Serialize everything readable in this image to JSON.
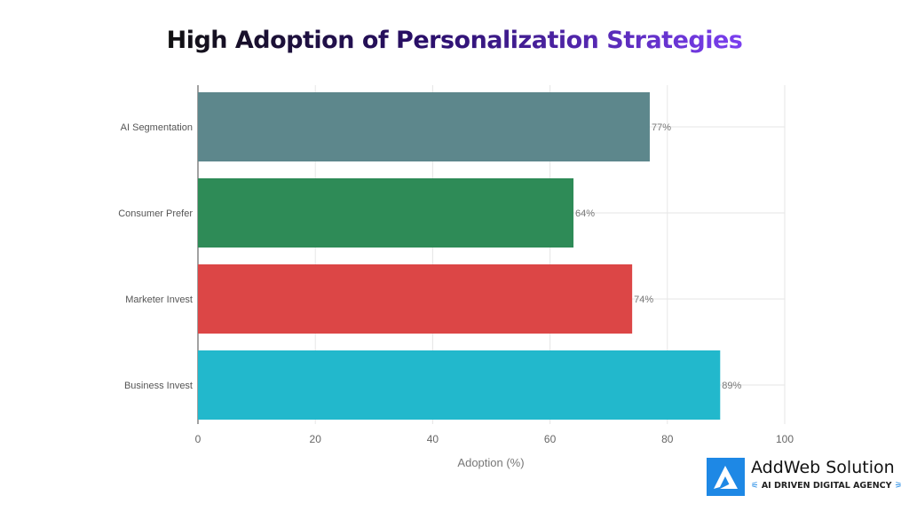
{
  "chart_data": {
    "type": "bar",
    "orientation": "horizontal",
    "title": "High Adoption of Personalization Strategies",
    "categories": [
      "AI Segmentation",
      "Consumer Prefer",
      "Marketer Invest",
      "Business Invest"
    ],
    "values": [
      77,
      64,
      74,
      89
    ],
    "data_labels": [
      "77%",
      "64%",
      "74%",
      "89%"
    ],
    "colors": [
      "#5d878c",
      "#2e8b57",
      "#dc4646",
      "#22b8cc"
    ],
    "xlabel": "Adoption (%)",
    "ylabel": "",
    "xlim": [
      0,
      100
    ],
    "xticks": [
      0,
      20,
      40,
      60,
      80,
      100
    ],
    "grid": true
  },
  "logo": {
    "name": "AddWeb Solution",
    "tagline": "AI DRIVEN DIGITAL AGENCY"
  }
}
